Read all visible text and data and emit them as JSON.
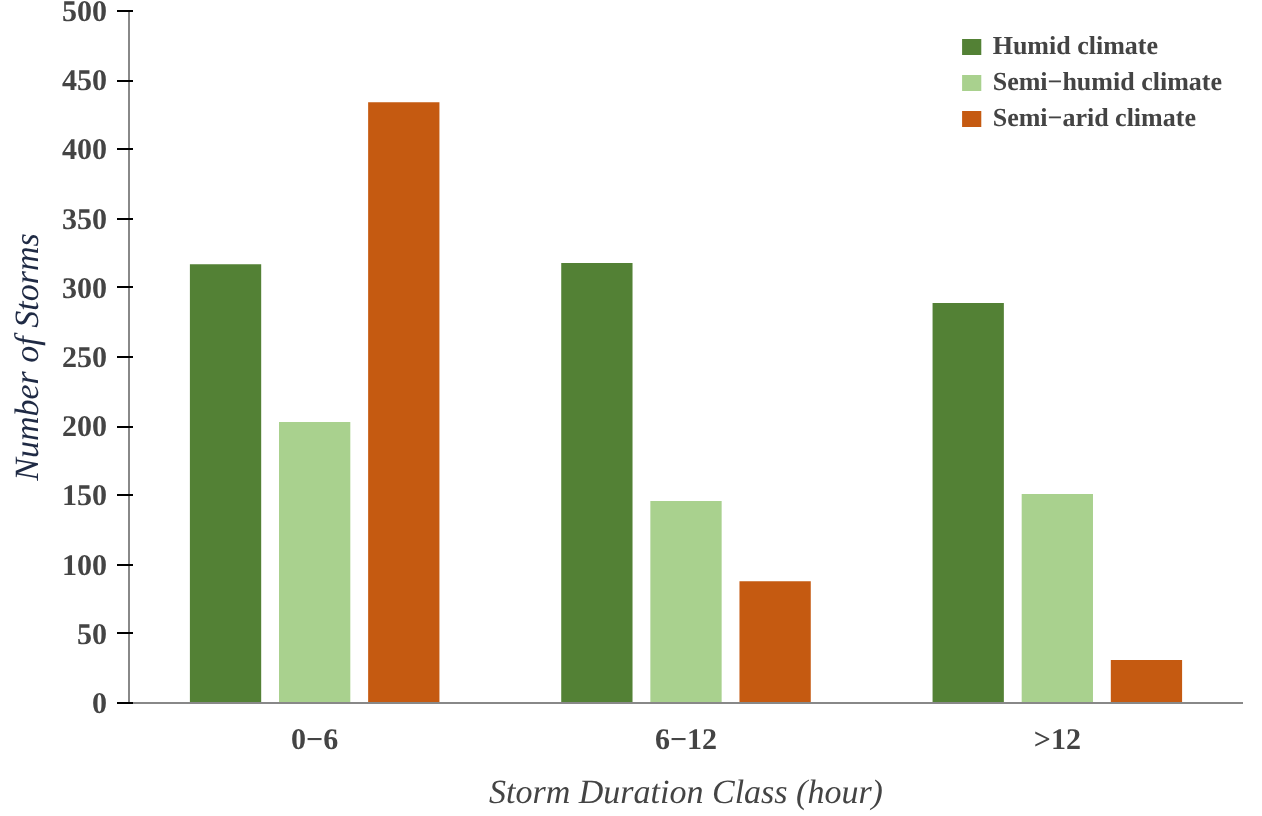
{
  "chart_data": {
    "type": "bar",
    "xlabel": "Storm Duration Class (hour)",
    "ylabel": "Number of Storms",
    "categories": [
      "0−6",
      "6−12",
      ">12"
    ],
    "series": [
      {
        "name": "Humid climate",
        "color": "#538135",
        "values": [
          317,
          318,
          289
        ]
      },
      {
        "name": "Semi−humid climate",
        "color": "#a9d18e",
        "values": [
          203,
          146,
          151
        ]
      },
      {
        "name": "Semi−arid climate",
        "color": "#c55a11",
        "values": [
          434,
          88,
          31
        ]
      }
    ],
    "ylim": [
      0,
      500
    ],
    "yticks": [
      0,
      50,
      100,
      150,
      200,
      250,
      300,
      350,
      400,
      450,
      500
    ],
    "grid": false,
    "legend": "top right"
  }
}
